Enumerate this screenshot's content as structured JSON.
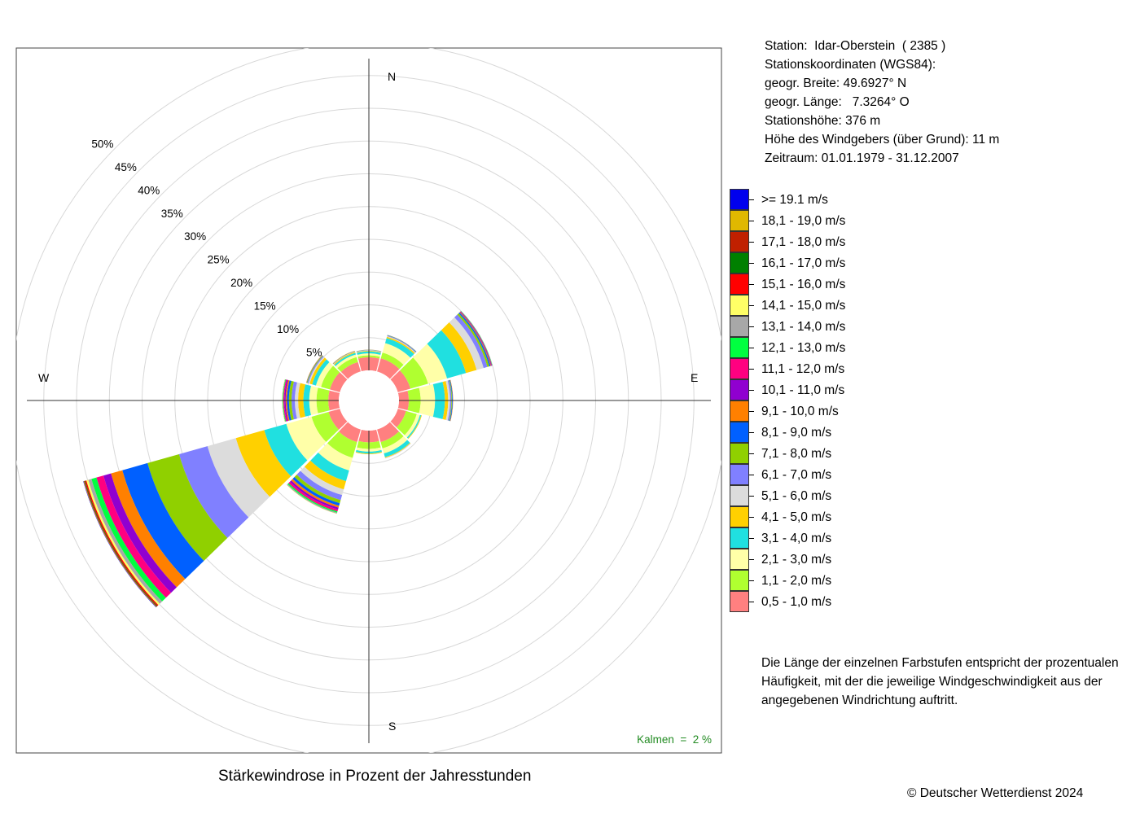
{
  "info": {
    "station": "Station:  Idar-Oberstein  ( 2385 )",
    "coords_header": "Stationskoordinaten (WGS84):",
    "latitude": "geogr. Breite: 49.6927° N",
    "longitude": "geogr. Länge:   7.3264° O",
    "altitude": "Stationshöhe: 376 m",
    "anemometer": "Höhe des Windgebers (über Grund): 11 m",
    "period": "Zeitraum: 01.01.1979 - 31.12.2007"
  },
  "legend": [
    {
      "label": ">= 19.1 m/s",
      "color": "#0000ee"
    },
    {
      "label": "18,1 - 19,0 m/s",
      "color": "#e0b800"
    },
    {
      "label": "17,1 - 18,0 m/s",
      "color": "#c02000"
    },
    {
      "label": "16,1 - 17,0 m/s",
      "color": "#008000"
    },
    {
      "label": "15,1 - 16,0 m/s",
      "color": "#ff0000"
    },
    {
      "label": "14,1 - 15,0 m/s",
      "color": "#ffff66"
    },
    {
      "label": "13,1 - 14,0 m/s",
      "color": "#a8a8a8"
    },
    {
      "label": "12,1 - 13,0 m/s",
      "color": "#00ff40"
    },
    {
      "label": "11,1 - 12,0 m/s",
      "color": "#ff0080"
    },
    {
      "label": "10,1 - 11,0 m/s",
      "color": "#9000d0"
    },
    {
      "label": "9,1 - 10,0 m/s",
      "color": "#ff8000"
    },
    {
      "label": "8,1 - 9,0 m/s",
      "color": "#0060ff"
    },
    {
      "label": "7,1 - 8,0 m/s",
      "color": "#90d000"
    },
    {
      "label": "6,1 - 7,0 m/s",
      "color": "#8080ff"
    },
    {
      "label": "5,1 - 6,0 m/s",
      "color": "#dcdcdc"
    },
    {
      "label": "4,1 - 5,0 m/s",
      "color": "#ffd000"
    },
    {
      "label": "3,1 - 4,0 m/s",
      "color": "#20e0e0"
    },
    {
      "label": "2,1 - 3,0 m/s",
      "color": "#ffffa8"
    },
    {
      "label": "1,1 - 2,0 m/s",
      "color": "#b0ff30"
    },
    {
      "label": "0,5 - 1,0 m/s",
      "color": "#ff8080"
    }
  ],
  "note": "Die Länge der einzelnen Farbstufen entspricht der prozentualen Häufigkeit, mit der die jeweilige Windgeschwindigkeit aus der angegebenen Windrichtung auftritt.",
  "caption": "Stärkewindrose in Prozent der Jahresstunden",
  "copyright": "© Deutscher Wetterdienst  2024",
  "chart_data": {
    "type": "wind-rose",
    "title": "Stärkewindrose in Prozent der Jahresstunden",
    "directions": [
      "N",
      "E",
      "S",
      "W"
    ],
    "ring_labels": [
      "5%",
      "10%",
      "15%",
      "20%",
      "25%",
      "30%",
      "35%",
      "40%",
      "45%",
      "50%"
    ],
    "ring_values": [
      5,
      10,
      15,
      20,
      25,
      30,
      35,
      40,
      45,
      50
    ],
    "calm_label": "Kalmen  =  2 %",
    "calm_percent": 2,
    "sector_center_deg": [
      0,
      30,
      60,
      90,
      120,
      150,
      180,
      210,
      240,
      270,
      300,
      330
    ],
    "speed_classes_low_to_high": [
      "0,5 - 1,0 m/s",
      "1,1 - 2,0 m/s",
      "2,1 - 3,0 m/s",
      "3,1 - 4,0 m/s",
      "4,1 - 5,0 m/s",
      "5,1 - 6,0 m/s",
      "6,1 - 7,0 m/s",
      "7,1 - 8,0 m/s",
      "8,1 - 9,0 m/s",
      "9,1 - 10,0 m/s",
      "10,1 - 11,0 m/s",
      "11,1 - 12,0 m/s",
      "12,1 - 13,0 m/s",
      "13,1 - 14,0 m/s",
      "14,1 - 15,0 m/s",
      "15,1 - 16,0 m/s",
      "16,1 - 17,0 m/s",
      "17,1 - 18,0 m/s",
      "18,1 - 19,0 m/s",
      ">= 19.1 m/s"
    ],
    "cumulative_percent_by_sector": [
      [
        2.0,
        2.3,
        2.6,
        2.9,
        3.0,
        3.05,
        3.1,
        3.13,
        3.15,
        3.16
      ],
      [
        2.1,
        3.0,
        4.5,
        5.3,
        5.5,
        5.6,
        5.7,
        5.75,
        5.8,
        5.82
      ],
      [
        2.0,
        4.8,
        7.8,
        10.8,
        12.5,
        13.6,
        14.2,
        14.5,
        14.7,
        14.8,
        14.9,
        14.95,
        15.0
      ],
      [
        1.5,
        3.3,
        5.5,
        7.0,
        7.5,
        7.8,
        8.0,
        8.1,
        8.2,
        8.25
      ],
      [
        1.3,
        3.0,
        3.5,
        3.7,
        3.8
      ],
      [
        2.0,
        3.0,
        3.8,
        4.4,
        4.5,
        4.6
      ],
      [
        1.8,
        2.8,
        3.2,
        3.5,
        3.6
      ],
      [
        2.0,
        4.5,
        6.5,
        8.2,
        9.5,
        10.4,
        11.2,
        11.7,
        12.1,
        12.4,
        12.7,
        13.0,
        13.2,
        13.35,
        13.4
      ],
      [
        1.8,
        4.5,
        8.5,
        12.0,
        16.5,
        21.0,
        25.5,
        30.5,
        34.5,
        36.3,
        37.5,
        38.6,
        39.4,
        39.9,
        40.2,
        40.4,
        40.5,
        40.6,
        40.65,
        40.7
      ],
      [
        1.6,
        3.4,
        4.5,
        5.4,
        6.2,
        6.7,
        7.2,
        7.6,
        7.9,
        8.1,
        8.3,
        8.45,
        8.55,
        8.62,
        8.66
      ],
      [
        1.6,
        3.0,
        3.8,
        4.4,
        4.8,
        5.0,
        5.15,
        5.25,
        5.3,
        5.35
      ],
      [
        1.5,
        2.3,
        2.7,
        2.95,
        3.1,
        3.15,
        3.2,
        3.25,
        3.27,
        3.3
      ]
    ]
  }
}
